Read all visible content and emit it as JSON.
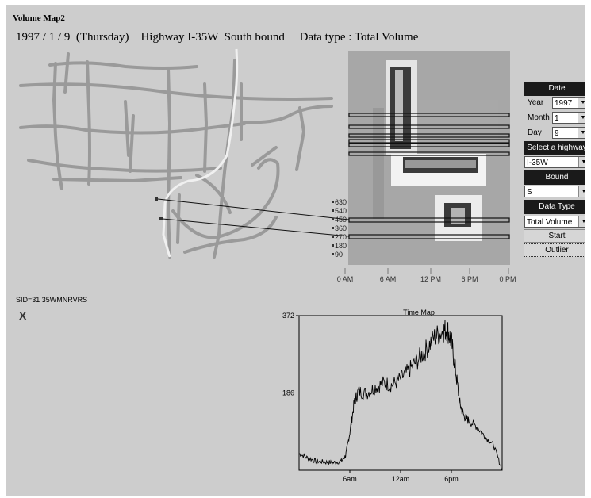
{
  "window_title": "Volume Map2",
  "header": "1997 / 1 / 9  (Thursday)    Highway I-35W  South bound     Data type : Total Volume",
  "colors": {
    "panel_bg": "#cdcdcd",
    "panel_head": "#1a1a1a",
    "road": "#9a9a9a",
    "highlight_road": "#f0f0f0"
  },
  "heatmap": {
    "y_labels": [
      "630",
      "540",
      "450",
      "360",
      "270",
      "180",
      "90"
    ],
    "x_labels": [
      "0 AM",
      "6 AM",
      "12 PM",
      "6 PM",
      "0 PM"
    ]
  },
  "controls": {
    "date_header": "Date",
    "year_label": "Year",
    "year_value": "1997",
    "month_label": "Month",
    "month_value": "1",
    "day_label": "Day",
    "day_value": "9",
    "highway_header": "Select a highway",
    "highway_value": "I-35W",
    "bound_header": "Bound",
    "bound_value": "S",
    "datatype_header": "Data Type",
    "datatype_value": "Total Volume",
    "start_label": "Start",
    "outlier_label": "Outlier",
    "dropdown_icon": "triangle-down"
  },
  "sid_label": "SID=31  35WMNRVRS",
  "close_label": "X",
  "chart_data": {
    "type": "line",
    "title": "Time Map",
    "y_ticks": [
      "372",
      "186"
    ],
    "x_ticks": [
      "6am",
      "12am",
      "6pm"
    ],
    "ylim": [
      0,
      372
    ],
    "x_units": "hours",
    "xlim": [
      0,
      24
    ],
    "series": [
      {
        "x": [
          0,
          1,
          2,
          3,
          4,
          5,
          5.5,
          6,
          6.5,
          7,
          8,
          9,
          10,
          11,
          12,
          13,
          14,
          15,
          16,
          17,
          17.5,
          18,
          18.5,
          19,
          19.5,
          20,
          21,
          22,
          23,
          24
        ],
        "values": [
          40,
          30,
          22,
          20,
          18,
          22,
          35,
          90,
          160,
          190,
          185,
          200,
          210,
          205,
          220,
          240,
          265,
          290,
          320,
          335,
          340,
          310,
          240,
          160,
          130,
          120,
          105,
          80,
          60,
          0
        ]
      }
    ]
  }
}
